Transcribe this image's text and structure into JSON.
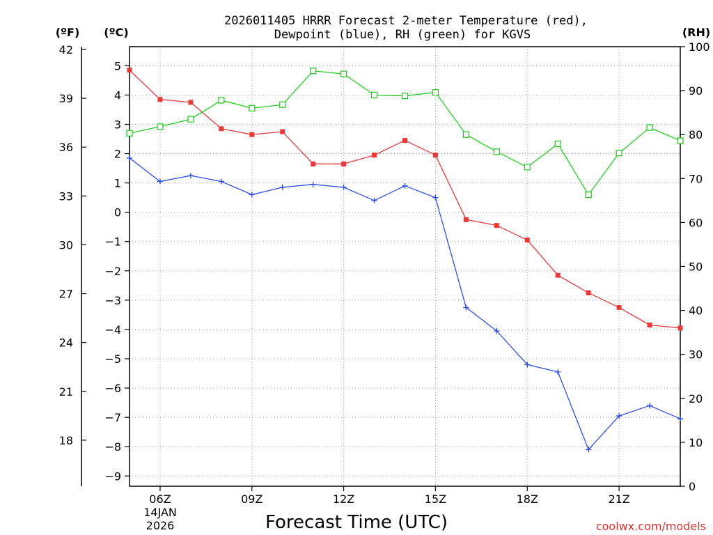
{
  "title": {
    "line1": "2026011405 HRRR Forecast 2-meter Temperature (red),",
    "line2": "Dewpoint (blue), RH (green) for KGVS"
  },
  "axis_units": {
    "fahrenheit": "(ºF)",
    "celsius": "(ºC)",
    "rh": "(RH)"
  },
  "x_label": "Forecast Time (UTC)",
  "x_date_line1": "14JAN",
  "x_date_line2": "2026",
  "credit": "coolwx.com/models",
  "colors": {
    "temperature": "#e8393a",
    "dewpoint": "#2b4ef0",
    "rh": "#22d022",
    "credit": "#e03030"
  },
  "chart_data": {
    "type": "line",
    "title": "2026011405 HRRR Forecast 2-meter Temperature (red), Dewpoint (blue), RH (green) for KGVS",
    "xlabel": "Forecast Time (UTC)",
    "x": [
      5,
      6,
      7,
      8,
      9,
      10,
      11,
      12,
      13,
      14,
      15,
      16,
      17,
      18,
      19,
      20,
      21,
      22,
      23
    ],
    "xlim": [
      5,
      23
    ],
    "x_ticks": [
      6,
      9,
      12,
      15,
      18,
      21
    ],
    "x_tick_labels": [
      "06Z",
      "09Z",
      "12Z",
      "15Z",
      "18Z",
      "21Z"
    ],
    "y_left_celsius": {
      "ylim": [
        -9.35,
        5.65
      ],
      "ticks": [
        5,
        4,
        3,
        2,
        1,
        0,
        -1,
        -2,
        -3,
        -4,
        -5,
        -6,
        -7,
        -8,
        -9
      ],
      "tick_labels": [
        "5",
        "4",
        "3",
        "2",
        "1",
        "0",
        "−1",
        "−2",
        "−3",
        "−4",
        "−5",
        "−6",
        "−7",
        "−8",
        "−9"
      ]
    },
    "y_left_fahrenheit": {
      "ticks": [
        42,
        39,
        36,
        33,
        30,
        27,
        24,
        21,
        18
      ],
      "tick_labels": [
        "42",
        "39",
        "36",
        "33",
        "30",
        "27",
        "24",
        "21",
        "18"
      ]
    },
    "y_right_rh": {
      "ylim": [
        0,
        100
      ],
      "ticks": [
        100,
        90,
        80,
        70,
        60,
        50,
        40,
        30,
        20,
        10,
        0
      ],
      "tick_labels": [
        "100",
        "90",
        "80",
        "70",
        "60",
        "50",
        "40",
        "30",
        "20",
        "10",
        "0"
      ]
    },
    "grid": true,
    "series": [
      {
        "name": "Temperature (red)",
        "axis": "celsius",
        "marker": "filled-square",
        "values": [
          4.85,
          3.85,
          3.75,
          2.85,
          2.65,
          2.75,
          1.65,
          1.65,
          1.95,
          2.45,
          1.95,
          -0.25,
          -0.45,
          -0.95,
          -2.15,
          -2.75,
          -3.25,
          -3.85,
          -3.95
        ]
      },
      {
        "name": "Dewpoint (blue)",
        "axis": "celsius",
        "marker": "plus",
        "values": [
          1.85,
          1.05,
          1.25,
          1.05,
          0.6,
          0.85,
          0.95,
          0.85,
          0.4,
          0.9,
          0.5,
          -3.25,
          -4.05,
          -5.2,
          -5.45,
          -8.1,
          -6.95,
          -6.6,
          -7.05
        ]
      },
      {
        "name": "RH (green)",
        "axis": "rh",
        "marker": "open-square",
        "values": [
          80.3,
          81.8,
          83.5,
          87.8,
          86.0,
          86.8,
          94.5,
          93.8,
          89.0,
          88.8,
          89.6,
          80.0,
          76.1,
          72.6,
          77.9,
          66.3,
          75.8,
          81.6,
          78.6
        ]
      }
    ]
  }
}
